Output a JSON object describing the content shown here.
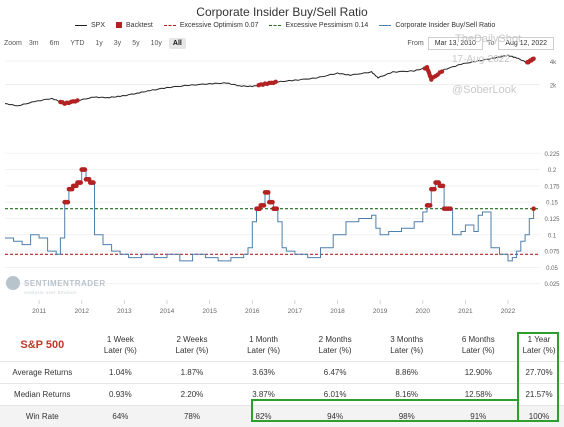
{
  "title": "Corporate Insider Buy/Sell Ratio",
  "legend": [
    {
      "label": "SPX",
      "kind": "line",
      "color": "#222222"
    },
    {
      "label": "Backtest",
      "kind": "square",
      "color": "#b22222"
    },
    {
      "label": "Excessive Optimism 0.07",
      "kind": "dashed",
      "color": "#b22222"
    },
    {
      "label": "Excessive Pessimism 0.14",
      "kind": "dashed",
      "color": "#1e6b1e"
    },
    {
      "label": "Corporate Insider Buy/Sell Ratio",
      "kind": "line",
      "color": "#4f7fad"
    }
  ],
  "zoom": {
    "label": "Zoom",
    "options": [
      "3m",
      "6m",
      "YTD",
      "1y",
      "3y",
      "5y",
      "10y",
      "All"
    ],
    "active": "All"
  },
  "range": {
    "from_label": "From",
    "from_value": "Mar 13, 2010",
    "to_label": "To",
    "to_value": "Aug 12, 2022"
  },
  "watermark": {
    "date": "17-Aug-2022",
    "brand": "TheDailyShot",
    "handle": "@SoberLook"
  },
  "sentimentrader": {
    "name": "SENTIMENTRADER",
    "tagline": "Analysis over Emotion"
  },
  "chart_data": [
    {
      "type": "line",
      "series": [
        {
          "name": "SPX",
          "color": "#222222",
          "x": [
            2010.2,
            2010.5,
            2010.9,
            2011.3,
            2011.6,
            2011.9,
            2012.3,
            2012.6,
            2012.9,
            2013.3,
            2013.6,
            2014.0,
            2014.5,
            2015.0,
            2015.4,
            2015.7,
            2016.0,
            2016.3,
            2016.6,
            2017.0,
            2017.5,
            2018.0,
            2018.3,
            2018.8,
            2018.95,
            2019.3,
            2019.8,
            2020.1,
            2020.2,
            2020.5,
            2020.9,
            2021.3,
            2021.7,
            2022.0,
            2022.2,
            2022.45,
            2022.6
          ],
          "y": [
            1150,
            1080,
            1220,
            1340,
            1150,
            1260,
            1390,
            1370,
            1420,
            1560,
            1680,
            1840,
            1960,
            2060,
            2100,
            1930,
            1900,
            2050,
            2170,
            2280,
            2430,
            2800,
            2640,
            2900,
            2450,
            2900,
            3000,
            3300,
            2350,
            3100,
            3650,
            4000,
            4400,
            4700,
            4400,
            3800,
            4280
          ]
        }
      ],
      "y_axis": {
        "scale": "log",
        "ticks": [
          "2k",
          "4k"
        ]
      },
      "backtest_periods": [
        "2011",
        "2012",
        "2016",
        "2020"
      ]
    },
    {
      "type": "line",
      "x_ticks": [
        "2011",
        "2012",
        "2013",
        "2014",
        "2015",
        "2016",
        "2017",
        "2018",
        "2019",
        "2020",
        "2021",
        "2022"
      ],
      "y_ticks": [
        "0.025",
        "0.05",
        "0.075",
        "0.1",
        "0.125",
        "0.15",
        "0.175",
        "0.2",
        "0.225"
      ],
      "ylim": [
        0.0,
        0.23
      ],
      "reference_lines": [
        {
          "name": "Excessive Optimism",
          "value": 0.07,
          "color": "#b22222"
        },
        {
          "name": "Excessive Pessimism",
          "value": 0.14,
          "color": "#1e6b1e"
        }
      ],
      "series": [
        {
          "name": "Corporate Insider Buy/Sell Ratio",
          "color": "#4f7fad",
          "x": [
            2010.2,
            2010.4,
            2010.6,
            2010.8,
            2011.0,
            2011.2,
            2011.4,
            2011.5,
            2011.6,
            2011.7,
            2011.8,
            2011.9,
            2012.0,
            2012.1,
            2012.2,
            2012.3,
            2012.5,
            2012.7,
            2012.9,
            2013.1,
            2013.4,
            2013.7,
            2014.0,
            2014.3,
            2014.6,
            2014.9,
            2015.2,
            2015.5,
            2015.8,
            2015.9,
            2016.0,
            2016.1,
            2016.2,
            2016.3,
            2016.4,
            2016.5,
            2016.6,
            2016.7,
            2016.8,
            2017.0,
            2017.3,
            2017.6,
            2017.9,
            2018.2,
            2018.5,
            2018.8,
            2018.9,
            2019.0,
            2019.2,
            2019.5,
            2019.8,
            2020.0,
            2020.1,
            2020.2,
            2020.3,
            2020.4,
            2020.5,
            2020.7,
            2020.9,
            2021.0,
            2021.2,
            2021.3,
            2021.4,
            2021.6,
            2021.8,
            2022.0,
            2022.1,
            2022.2,
            2022.3,
            2022.4,
            2022.5,
            2022.6
          ],
          "y": [
            0.095,
            0.09,
            0.085,
            0.1,
            0.095,
            0.075,
            0.07,
            0.095,
            0.15,
            0.17,
            0.175,
            0.18,
            0.2,
            0.185,
            0.18,
            0.1,
            0.085,
            0.075,
            0.07,
            0.065,
            0.07,
            0.065,
            0.07,
            0.06,
            0.07,
            0.065,
            0.06,
            0.065,
            0.07,
            0.08,
            0.12,
            0.14,
            0.145,
            0.165,
            0.15,
            0.14,
            0.12,
            0.08,
            0.075,
            0.07,
            0.065,
            0.08,
            0.1,
            0.12,
            0.125,
            0.13,
            0.11,
            0.1,
            0.105,
            0.11,
            0.12,
            0.135,
            0.145,
            0.17,
            0.18,
            0.175,
            0.14,
            0.1,
            0.105,
            0.115,
            0.105,
            0.13,
            0.135,
            0.08,
            0.07,
            0.06,
            0.065,
            0.075,
            0.09,
            0.1,
            0.125,
            0.14
          ]
        }
      ]
    }
  ],
  "table": {
    "title": "S&P 500",
    "columns": [
      "1 Week\nLater (%)",
      "2 Weeks\nLater (%)",
      "1 Month\nLater (%)",
      "2 Months\nLater (%)",
      "3 Months\nLater (%)",
      "6 Months\nLater (%)",
      "1 Year\nLater (%)"
    ],
    "rows": [
      {
        "label": "Average Returns",
        "values": [
          "1.04%",
          "1.87%",
          "3.63%",
          "6.47%",
          "8.86%",
          "12.90%",
          "27.70%"
        ]
      },
      {
        "label": "Median Returns",
        "values": [
          "0.93%",
          "2.20%",
          "3.87%",
          "6.01%",
          "8.16%",
          "12.58%",
          "21.57%"
        ]
      },
      {
        "label": "Win Rate",
        "values": [
          "64%",
          "78%",
          "82%",
          "94%",
          "98%",
          "91%",
          "100%"
        ]
      }
    ]
  }
}
